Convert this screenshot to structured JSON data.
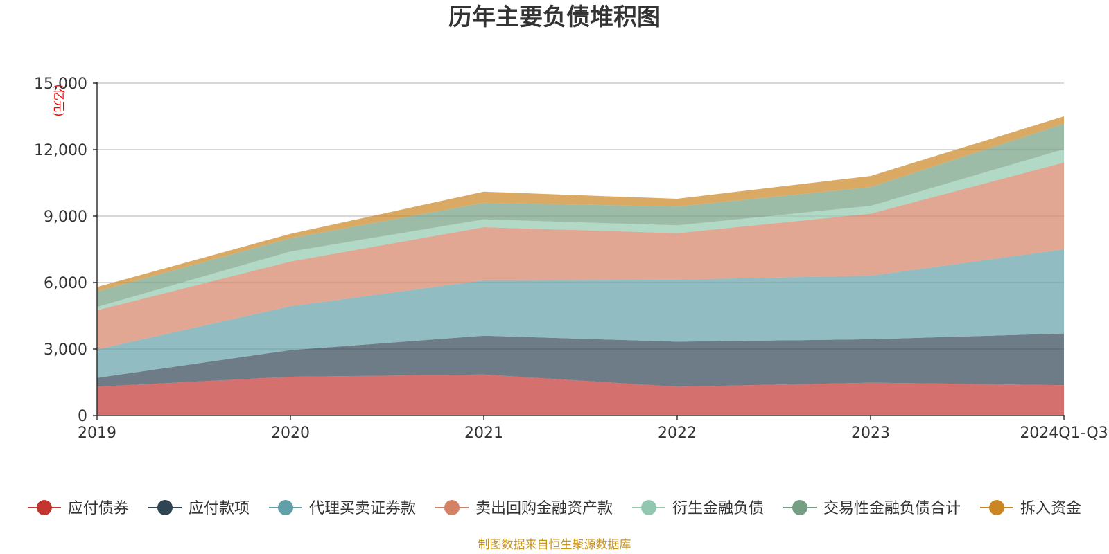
{
  "chart_data": {
    "type": "area",
    "stacked": true,
    "title": "历年主要负债堆积图",
    "unit": "(亿元)",
    "categories": [
      "2019",
      "2020",
      "2021",
      "2022",
      "2023",
      "2024Q1-Q3"
    ],
    "ylim": [
      0,
      15000
    ],
    "yticks": [
      0,
      3000,
      6000,
      9000,
      12000,
      15000
    ],
    "ytick_labels": [
      "0",
      "3,000",
      "6,000",
      "9,000",
      "12,000",
      "15,000"
    ],
    "grid": true,
    "legend_position": "bottom",
    "series": [
      {
        "name": "应付债券",
        "color": "#c23531",
        "values": [
          1300,
          1750,
          1850,
          1300,
          1480,
          1370
        ]
      },
      {
        "name": "应付款项",
        "color": "#2f4554",
        "values": [
          400,
          1200,
          1750,
          2030,
          1960,
          2330
        ]
      },
      {
        "name": "代理买卖证券款",
        "color": "#61a0a8",
        "values": [
          1280,
          1980,
          2500,
          2800,
          2870,
          3800
        ]
      },
      {
        "name": "卖出回购金融资产款",
        "color": "#d48265",
        "values": [
          1770,
          2020,
          2400,
          2100,
          2800,
          3920
        ]
      },
      {
        "name": "衍生金融负债",
        "color": "#91c7ae",
        "values": [
          150,
          450,
          350,
          350,
          350,
          600
        ]
      },
      {
        "name": "交易性金融负债合计",
        "color": "#749f83",
        "values": [
          700,
          600,
          750,
          850,
          850,
          1150
        ]
      },
      {
        "name": "拆入资金",
        "color": "#ca8622",
        "values": [
          200,
          200,
          500,
          350,
          500,
          330
        ]
      }
    ]
  },
  "source": "制图数据来自恒生聚源数据库"
}
